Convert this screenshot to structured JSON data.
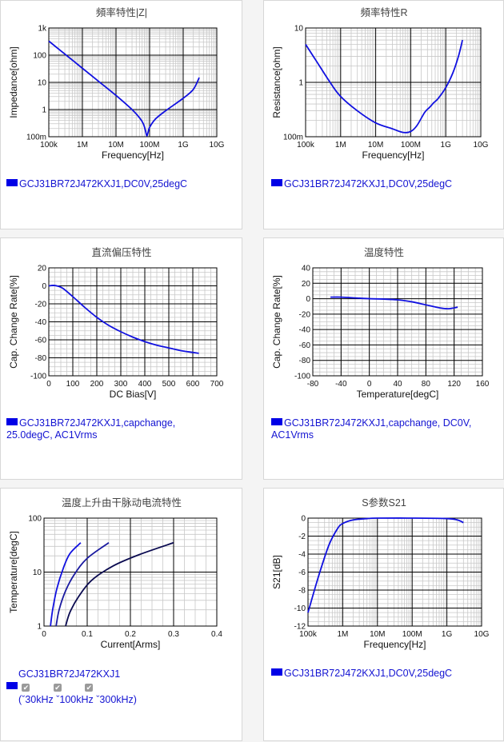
{
  "colors": {
    "curve": "#1010e0",
    "curve_dark": "#0a0a50",
    "grid_major": "#000000",
    "grid_minor": "#c8c8c8",
    "legend_text": "#1414d2"
  },
  "panels": [
    {
      "legend": "GCJ31BR72J472KXJ1,DC0V,25degC"
    },
    {
      "legend": "GCJ31BR72J472KXJ1,DC0V,25degC"
    },
    {
      "legend": "GCJ31BR72J472KXJ1,capchange,\n25.0degC, AC1Vrms"
    },
    {
      "legend": "GCJ31BR72J472KXJ1,capchange, DC0V,\nAC1Vrms"
    },
    {
      "legend": "GCJ31BR72J472KXJ1",
      "checks": [
        "✔",
        "✔",
        "✔"
      ],
      "freqs": "(ˇ30kHz ˇ100kHz ˇ300kHz)"
    },
    {
      "legend": "GCJ31BR72J472KXJ1,DC0V,25degC"
    }
  ],
  "chart_data": [
    {
      "type": "line",
      "title": "頻率特性|Z|",
      "xlabel": "Frequency[Hz]",
      "ylabel": "Impedance[ohm]",
      "xscale": "log",
      "yscale": "log",
      "xlim": [
        100000,
        10000000000
      ],
      "ylim": [
        0.1,
        1000
      ],
      "xticks": [
        [
          100000,
          "100k"
        ],
        [
          1000000,
          "1M"
        ],
        [
          10000000,
          "10M"
        ],
        [
          100000000,
          "100M"
        ],
        [
          1000000000,
          "1G"
        ],
        [
          10000000000,
          "10G"
        ]
      ],
      "yticks": [
        [
          0.1,
          "100m"
        ],
        [
          1,
          "1"
        ],
        [
          10,
          "10"
        ],
        [
          100,
          "100"
        ],
        [
          1000,
          "1k"
        ]
      ],
      "series": [
        {
          "color": "#1010e0",
          "points": [
            [
              100000,
              330
            ],
            [
              300000,
              110
            ],
            [
              1000000,
              33
            ],
            [
              3000000,
              11
            ],
            [
              10000000,
              3.3
            ],
            [
              30000000,
              1
            ],
            [
              50000000,
              0.5
            ],
            [
              65000000,
              0.3
            ],
            [
              75000000,
              0.17
            ],
            [
              82000000,
              0.11
            ],
            [
              88000000,
              0.13
            ],
            [
              100000000,
              0.22
            ],
            [
              150000000,
              0.45
            ],
            [
              300000000,
              0.9
            ],
            [
              1000000000,
              2.6
            ],
            [
              2000000000,
              5.5
            ],
            [
              3000000000,
              15
            ]
          ]
        }
      ],
      "grid": true
    },
    {
      "type": "line",
      "title": "頻率特性R",
      "xlabel": "Frequency[Hz]",
      "ylabel": "Resistance[ohm]",
      "xscale": "log",
      "yscale": "log",
      "xlim": [
        100000,
        10000000000
      ],
      "ylim": [
        0.1,
        10
      ],
      "xticks": [
        [
          100000,
          "100k"
        ],
        [
          1000000,
          "1M"
        ],
        [
          10000000,
          "10M"
        ],
        [
          100000000,
          "100M"
        ],
        [
          1000000000,
          "1G"
        ],
        [
          10000000000,
          "10G"
        ]
      ],
      "yticks": [
        [
          0.1,
          "100m"
        ],
        [
          1,
          "1"
        ],
        [
          10,
          "10"
        ]
      ],
      "series": [
        {
          "color": "#1010e0",
          "points": [
            [
              100000,
              5
            ],
            [
              200000,
              2.5
            ],
            [
              500000,
              1
            ],
            [
              1000000,
              0.55
            ],
            [
              3000000,
              0.3
            ],
            [
              10000000,
              0.18
            ],
            [
              30000000,
              0.14
            ],
            [
              60000000,
              0.12
            ],
            [
              100000000,
              0.125
            ],
            [
              150000000,
              0.16
            ],
            [
              250000000,
              0.28
            ],
            [
              350000000,
              0.35
            ],
            [
              450000000,
              0.42
            ],
            [
              600000000,
              0.5
            ],
            [
              1000000000,
              0.8
            ],
            [
              1600000000,
              1.5
            ],
            [
              2300000000,
              3
            ],
            [
              3000000000,
              6
            ]
          ]
        }
      ],
      "grid": true
    },
    {
      "type": "line",
      "title": "直流偏压特性",
      "xlabel": "DC Bias[V]",
      "ylabel": "Cap. Change Rate[%]",
      "xscale": "linear",
      "yscale": "linear",
      "xlim": [
        0,
        700
      ],
      "ylim": [
        -100,
        20
      ],
      "xticks": [
        [
          0,
          "0"
        ],
        [
          100,
          "100"
        ],
        [
          200,
          "200"
        ],
        [
          300,
          "300"
        ],
        [
          400,
          "400"
        ],
        [
          500,
          "500"
        ],
        [
          600,
          "600"
        ],
        [
          700,
          "700"
        ]
      ],
      "yticks": [
        [
          -100,
          "-100"
        ],
        [
          -80,
          "-80"
        ],
        [
          -60,
          "-60"
        ],
        [
          -40,
          "-40"
        ],
        [
          -20,
          "-20"
        ],
        [
          0,
          "0"
        ],
        [
          20,
          "20"
        ]
      ],
      "series": [
        {
          "color": "#1010e0",
          "points": [
            [
              0,
              0
            ],
            [
              20,
              0.5
            ],
            [
              40,
              -0.5
            ],
            [
              60,
              -3
            ],
            [
              100,
              -12
            ],
            [
              150,
              -24
            ],
            [
              200,
              -35
            ],
            [
              250,
              -44
            ],
            [
              300,
              -51
            ],
            [
              350,
              -57
            ],
            [
              400,
              -62
            ],
            [
              450,
              -66
            ],
            [
              500,
              -69
            ],
            [
              550,
              -72
            ],
            [
              600,
              -74
            ],
            [
              625,
              -75
            ]
          ]
        }
      ],
      "grid": true
    },
    {
      "type": "line",
      "title": "温度特性",
      "xlabel": "Temperature[degC]",
      "ylabel": "Cap. Change Rate[%]",
      "xscale": "linear",
      "yscale": "linear",
      "xlim": [
        -80,
        160
      ],
      "ylim": [
        -100,
        40
      ],
      "xticks": [
        [
          -80,
          "-80"
        ],
        [
          -40,
          "-40"
        ],
        [
          0,
          "0"
        ],
        [
          40,
          "40"
        ],
        [
          80,
          "80"
        ],
        [
          120,
          "120"
        ],
        [
          160,
          "160"
        ]
      ],
      "yticks": [
        [
          -100,
          "-100"
        ],
        [
          -80,
          "-80"
        ],
        [
          -60,
          "-60"
        ],
        [
          -40,
          "-40"
        ],
        [
          -20,
          "-20"
        ],
        [
          0,
          "0"
        ],
        [
          20,
          "20"
        ],
        [
          40,
          "40"
        ]
      ],
      "series": [
        {
          "color": "#1010e0",
          "points": [
            [
              -55,
              2
            ],
            [
              -40,
              2
            ],
            [
              -20,
              1
            ],
            [
              0,
              0
            ],
            [
              20,
              -0.5
            ],
            [
              40,
              -1.5
            ],
            [
              60,
              -4
            ],
            [
              80,
              -8
            ],
            [
              100,
              -12
            ],
            [
              112,
              -13
            ],
            [
              125,
              -11
            ]
          ]
        }
      ],
      "grid": true
    },
    {
      "type": "line",
      "title": "温度上升由干脉动电流特性",
      "xlabel": "Current[Arms]",
      "ylabel": "Temperature[degC]",
      "xscale": "linear",
      "yscale": "log",
      "xlim": [
        0,
        0.4
      ],
      "ylim": [
        1,
        100
      ],
      "xticks": [
        [
          0,
          "0"
        ],
        [
          0.1,
          "0.1"
        ],
        [
          0.2,
          "0.2"
        ],
        [
          0.3,
          "0.3"
        ],
        [
          0.4,
          "0.4"
        ]
      ],
      "yticks": [
        [
          1,
          "1"
        ],
        [
          10,
          "10"
        ],
        [
          100,
          "100"
        ]
      ],
      "series": [
        {
          "name": "30kHz",
          "color": "#1010e0",
          "points": [
            [
              0.015,
              1
            ],
            [
              0.02,
              2
            ],
            [
              0.03,
              5
            ],
            [
              0.045,
              12
            ],
            [
              0.06,
              22
            ],
            [
              0.085,
              35
            ]
          ]
        },
        {
          "name": "100kHz",
          "color": "#1a1aa0",
          "points": [
            [
              0.028,
              1
            ],
            [
              0.035,
              2
            ],
            [
              0.05,
              4.5
            ],
            [
              0.07,
              9
            ],
            [
              0.1,
              18
            ],
            [
              0.15,
              35
            ]
          ]
        },
        {
          "name": "300kHz",
          "color": "#0a0a50",
          "points": [
            [
              0.05,
              1
            ],
            [
              0.06,
              1.8
            ],
            [
              0.08,
              3.5
            ],
            [
              0.11,
              7
            ],
            [
              0.16,
              13
            ],
            [
              0.22,
              21
            ],
            [
              0.3,
              35
            ]
          ]
        }
      ],
      "grid": true
    },
    {
      "type": "line",
      "title": "S参数S21",
      "xlabel": "Frequency[Hz]",
      "ylabel": "S21[dB]",
      "xscale": "log",
      "yscale": "linear",
      "xlim": [
        100000,
        10000000000
      ],
      "ylim": [
        -12,
        0
      ],
      "xticks": [
        [
          100000,
          "100k"
        ],
        [
          1000000,
          "1M"
        ],
        [
          10000000,
          "10M"
        ],
        [
          100000000,
          "100M"
        ],
        [
          1000000000,
          "1G"
        ],
        [
          10000000000,
          "10G"
        ]
      ],
      "yticks": [
        [
          -12,
          "-12"
        ],
        [
          -10,
          "-10"
        ],
        [
          -8,
          "-8"
        ],
        [
          -6,
          "-6"
        ],
        [
          -4,
          "-4"
        ],
        [
          -2,
          "-2"
        ],
        [
          0,
          "0"
        ]
      ],
      "series": [
        {
          "color": "#1010e0",
          "points": [
            [
              100000,
              -10.5
            ],
            [
              200000,
              -6.5
            ],
            [
              400000,
              -3
            ],
            [
              700000,
              -1.2
            ],
            [
              1000000,
              -0.6
            ],
            [
              2000000,
              -0.2
            ],
            [
              5000000,
              -0.05
            ],
            [
              10000000,
              0
            ],
            [
              100000000,
              0
            ],
            [
              1000000000,
              -0.05
            ],
            [
              2000000000,
              -0.2
            ],
            [
              3000000000,
              -0.5
            ]
          ]
        }
      ],
      "grid": true
    }
  ]
}
